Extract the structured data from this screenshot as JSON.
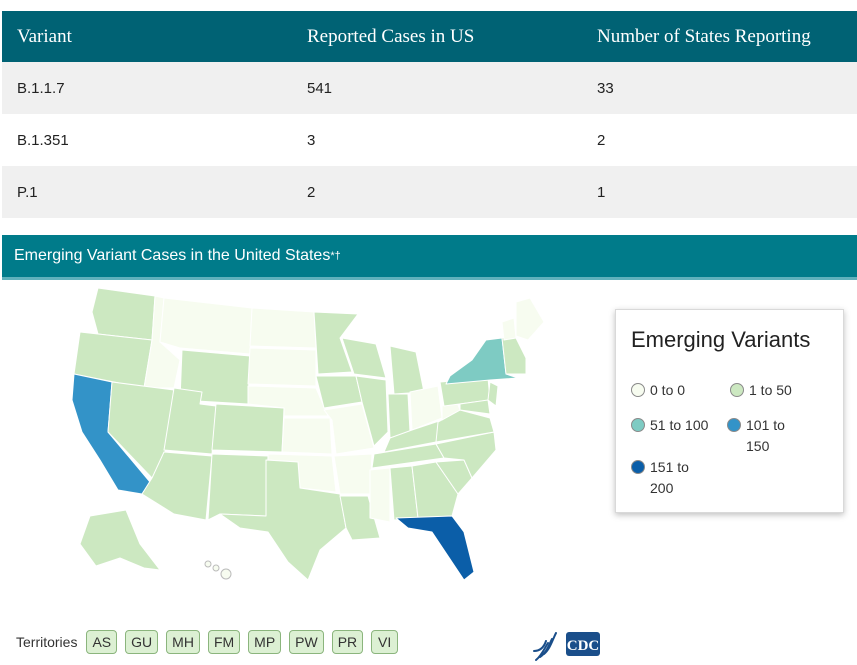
{
  "table": {
    "headers": [
      "Variant",
      "Reported Cases in US",
      "Number of States Reporting"
    ],
    "rows": [
      [
        "B.1.1.7",
        "541",
        "33"
      ],
      [
        "B.1.351",
        "3",
        "2"
      ],
      [
        "P.1",
        "2",
        "1"
      ]
    ]
  },
  "map": {
    "title": "Emerging Variant Cases in the United States",
    "title_marks": "*†"
  },
  "legend": {
    "title": "Emerging Variants",
    "items": [
      {
        "label": "0 to 0",
        "color": "#f7fcf0"
      },
      {
        "label": "1 to 50",
        "color": "#cce8c1"
      },
      {
        "label": "51 to 100",
        "color": "#7ecbc3"
      },
      {
        "label": "101 to 150",
        "color": "#3393c8"
      },
      {
        "label": "151 to 200",
        "color": "#0b5ea8"
      }
    ]
  },
  "territories": {
    "label": "Territories",
    "items": [
      "AS",
      "GU",
      "MH",
      "FM",
      "MP",
      "PW",
      "PR",
      "VI"
    ]
  },
  "logo": {
    "text": "CDC"
  }
}
